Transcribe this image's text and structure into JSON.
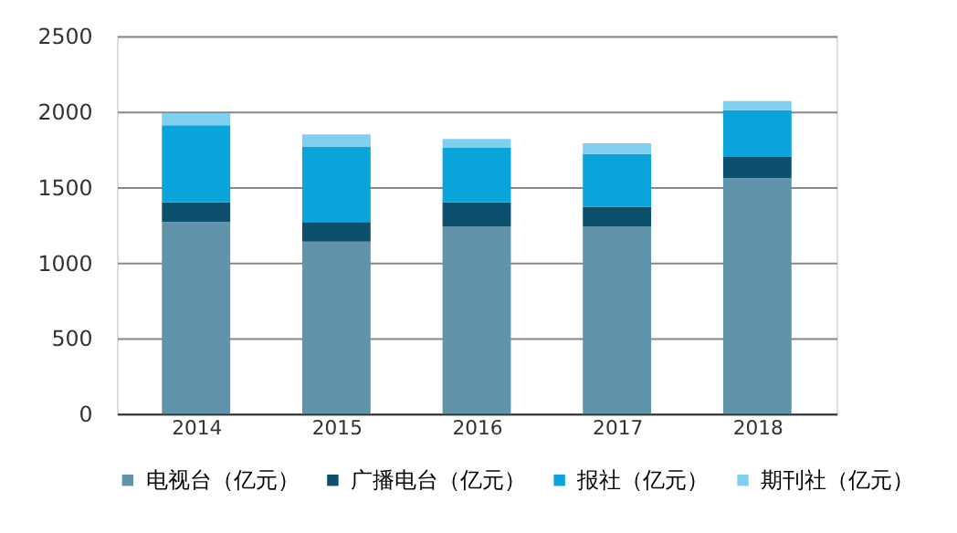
{
  "chart_data": {
    "type": "bar",
    "stacked": true,
    "categories": [
      "2014",
      "2015",
      "2016",
      "2017",
      "2018"
    ],
    "series": [
      {
        "name": "电视台（亿元）",
        "color": "#6193ab",
        "values": [
          1270,
          1140,
          1240,
          1240,
          1560
        ]
      },
      {
        "name": "广播电台（亿元）",
        "color": "#0c506d",
        "values": [
          130,
          130,
          160,
          130,
          140
        ]
      },
      {
        "name": "报社（亿元）",
        "color": "#0aa4db",
        "values": [
          510,
          500,
          360,
          350,
          310
        ]
      },
      {
        "name": "期刊社（亿元）",
        "color": "#7fd0ef",
        "values": [
          80,
          80,
          60,
          70,
          60
        ]
      }
    ],
    "ylim": [
      0,
      2500
    ],
    "yticks": [
      0,
      500,
      1000,
      1500,
      2000,
      2500
    ],
    "grid": "y",
    "legend": "bottom"
  }
}
